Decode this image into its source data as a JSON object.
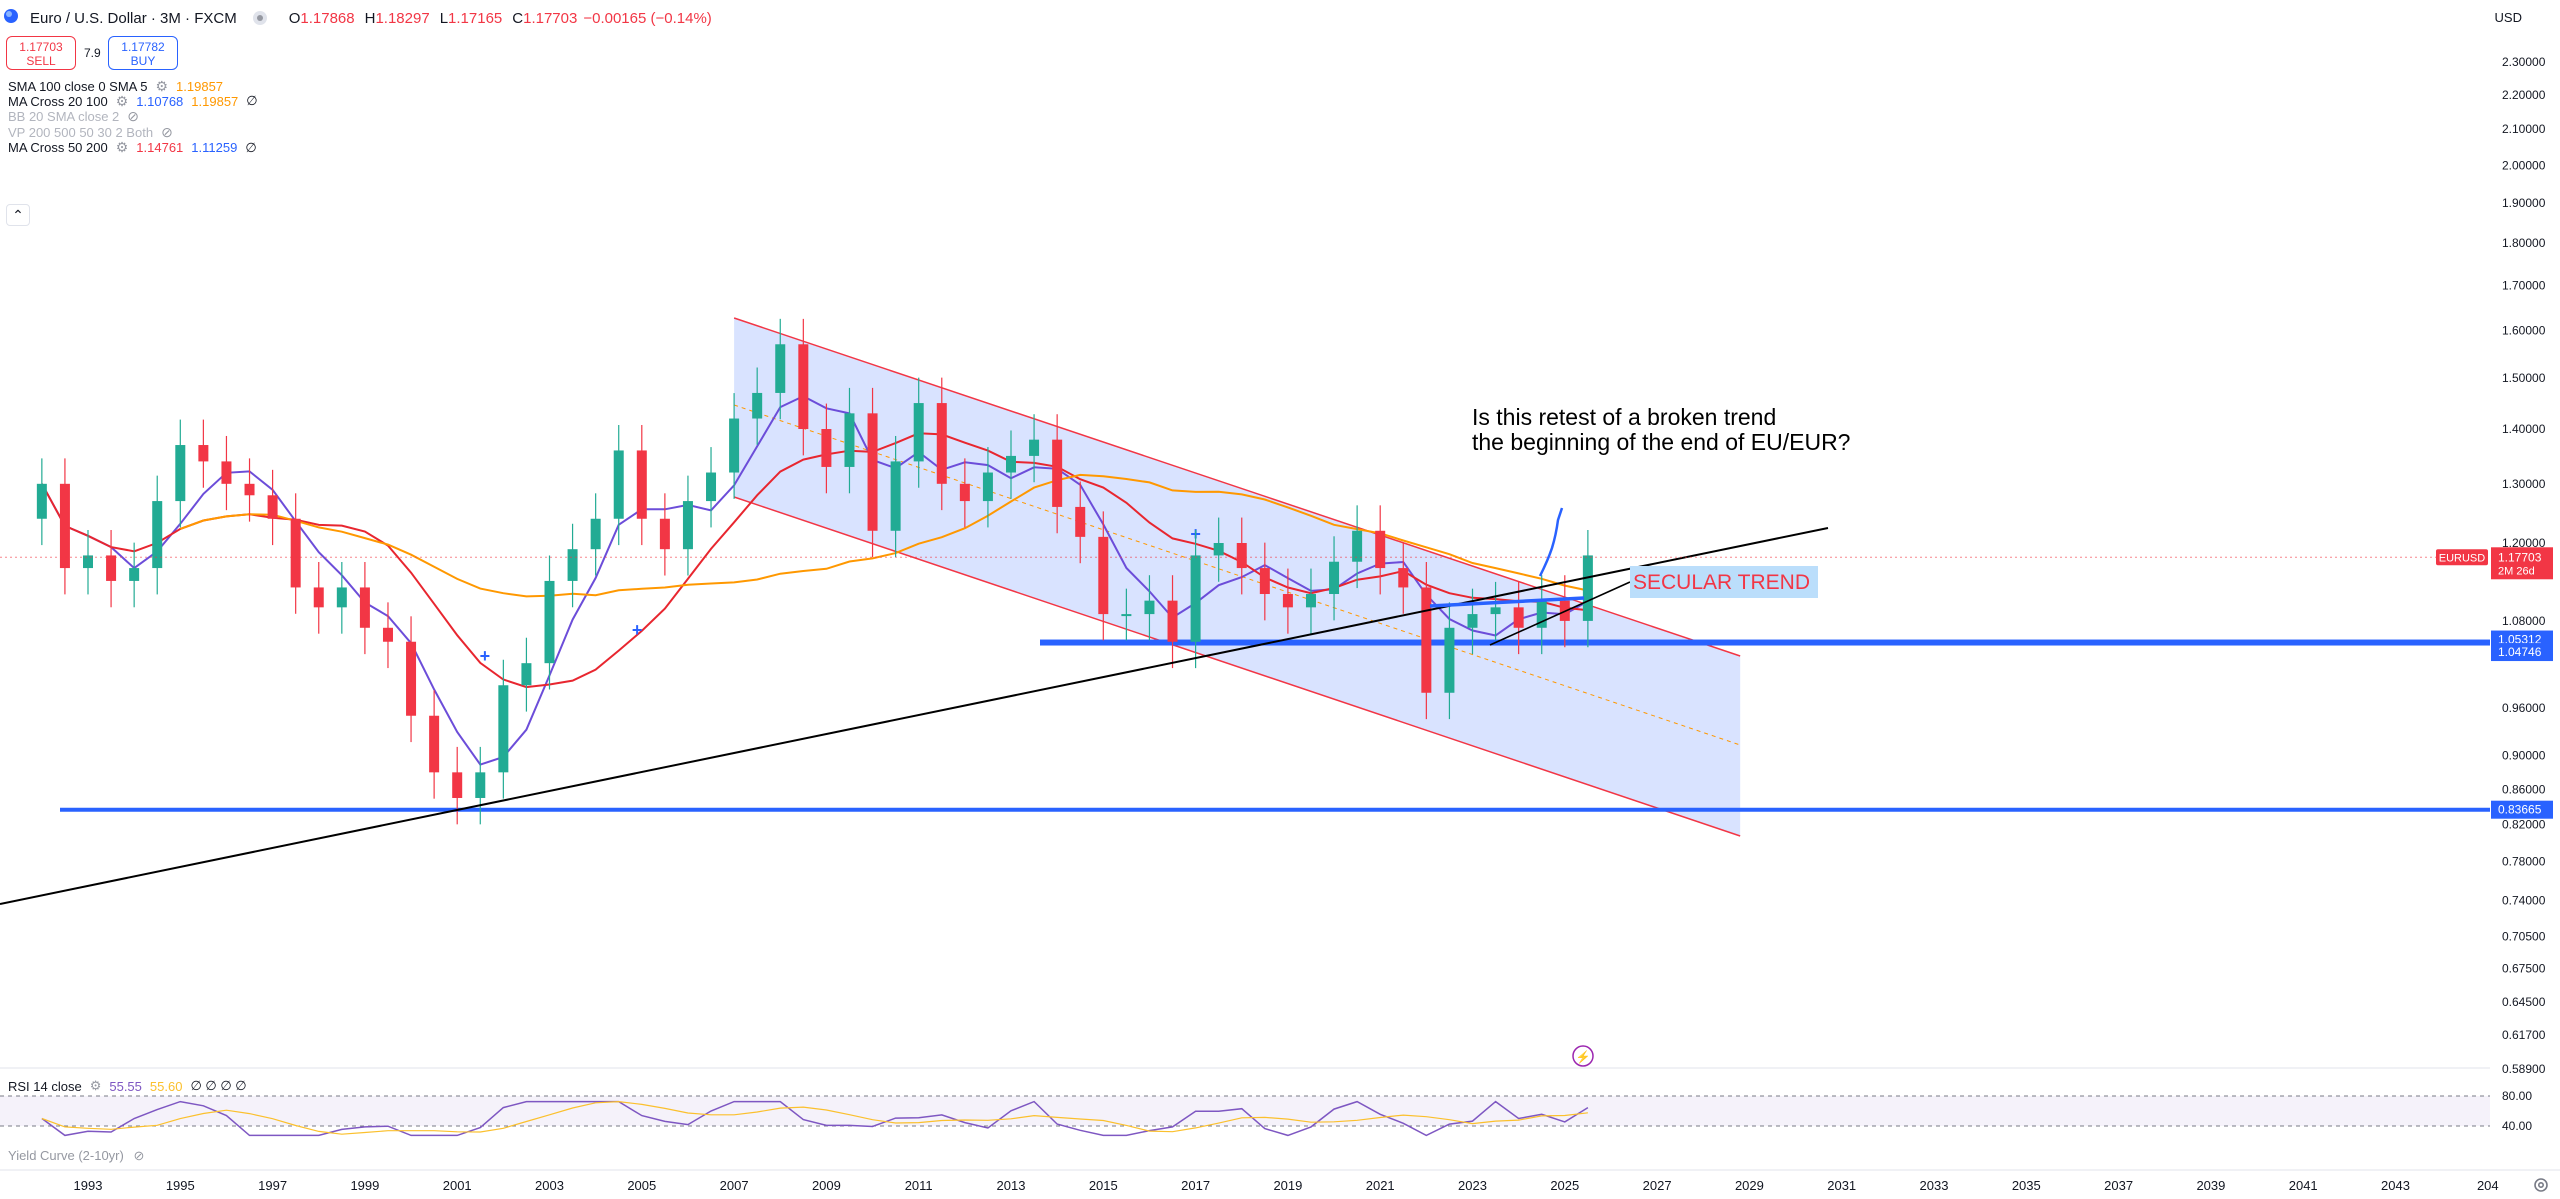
{
  "header": {
    "symbol": "Euro / U.S. Dollar · 3M · FXCM",
    "open_label": "O",
    "open": "1.17868",
    "high_label": "H",
    "high": "1.18297",
    "low_label": "L",
    "low": "1.17165",
    "close_label": "C",
    "close": "1.17703",
    "change": "−0.00165 (−0.14%)",
    "currency": "USD"
  },
  "trade": {
    "sell_price": "1.17703",
    "sell_label": "SELL",
    "spread": "7.9",
    "buy_price": "1.17782",
    "buy_label": "BUY"
  },
  "indicators": [
    {
      "name": "SMA 100 close 0 SMA 5",
      "values": [
        "1.19857"
      ],
      "colors": [
        "#ff9800"
      ],
      "faded": false,
      "suffix": "",
      "icon": "settings-icon"
    },
    {
      "name": "MA Cross 20 100",
      "values": [
        "1.10768",
        "1.19857"
      ],
      "colors": [
        "#2962ff",
        "#ff9800"
      ],
      "faded": false,
      "suffix": "∅",
      "icon": "settings-icon"
    },
    {
      "name": "BB 20 SMA close 2",
      "values": [],
      "colors": [],
      "faded": true,
      "suffix": "",
      "icon": "eye-off-icon"
    },
    {
      "name": "VP 200 500 50 30 2 Both",
      "values": [],
      "colors": [],
      "faded": true,
      "suffix": "",
      "icon": "eye-off-icon"
    },
    {
      "name": "MA Cross 50 200",
      "values": [
        "1.14761",
        "1.11259"
      ],
      "colors": [
        "#f23645",
        "#2962ff"
      ],
      "faded": false,
      "suffix": "∅",
      "icon": "settings-icon"
    }
  ],
  "rsi_panel": {
    "name": "RSI 14 close",
    "value1": "55.55",
    "value2": "55.60",
    "nulls": "∅ ∅ ∅ ∅",
    "levels": [
      "80.00",
      "40.00"
    ],
    "yield_curve": "Yield Curve (2-10yr)"
  },
  "annotations": {
    "question_line1": "Is this retest of a broken trend",
    "question_line2": "the beginning of the end of EU/EUR?",
    "secular_trend": "SECULAR TREND"
  },
  "price_tags": {
    "symbol": "EURUSD",
    "last": "1.17703",
    "countdown": "2M 26d",
    "level_high": "1.05312",
    "level_low": "1.04746",
    "level_support": "0.83665"
  },
  "colors": {
    "up": "#22ab94",
    "down": "#f23645",
    "sma20": "#6c4dd9",
    "sma50": "#e8262f",
    "sma100": "#ff9800",
    "channel": "#f23645",
    "channel_fill": "#cfdcff",
    "hline": "#2962ff",
    "trend": "#000000"
  },
  "chart_data": {
    "type": "candlestick",
    "period": "3M",
    "y_scale": "log",
    "ylim": [
      0.57,
      2.4
    ],
    "y_ticks": [
      "2.30000",
      "2.20000",
      "2.10000",
      "2.00000",
      "1.90000",
      "1.80000",
      "1.70000",
      "1.60000",
      "1.50000",
      "1.40000",
      "1.30000",
      "1.20000",
      "1.08000",
      "0.96000",
      "0.90000",
      "0.86000",
      "0.82000",
      "0.78000",
      "0.74000",
      "0.70500",
      "0.67500",
      "0.64500",
      "0.61700",
      "0.58900"
    ],
    "x_ticks": [
      "1993",
      "1995",
      "1997",
      "1999",
      "2001",
      "2003",
      "2005",
      "2007",
      "2009",
      "2011",
      "2013",
      "2015",
      "2017",
      "2019",
      "2021",
      "2023",
      "2025",
      "2027",
      "2029",
      "2031",
      "2033",
      "2035",
      "2037",
      "2039",
      "2041",
      "2043",
      "204"
    ],
    "closes": [
      {
        "t": 1992.0,
        "c": 1.3
      },
      {
        "t": 1992.5,
        "c": 1.16
      },
      {
        "t": 1993.0,
        "c": 1.18
      },
      {
        "t": 1993.5,
        "c": 1.14
      },
      {
        "t": 1994.0,
        "c": 1.16
      },
      {
        "t": 1994.5,
        "c": 1.27
      },
      {
        "t": 1995.0,
        "c": 1.37
      },
      {
        "t": 1995.5,
        "c": 1.34
      },
      {
        "t": 1996.0,
        "c": 1.3
      },
      {
        "t": 1996.5,
        "c": 1.28
      },
      {
        "t": 1997.0,
        "c": 1.24
      },
      {
        "t": 1997.5,
        "c": 1.13
      },
      {
        "t": 1998.0,
        "c": 1.1
      },
      {
        "t": 1998.5,
        "c": 1.13
      },
      {
        "t": 1999.0,
        "c": 1.07
      },
      {
        "t": 1999.5,
        "c": 1.05
      },
      {
        "t": 2000.0,
        "c": 0.95
      },
      {
        "t": 2000.5,
        "c": 0.88
      },
      {
        "t": 2001.0,
        "c": 0.85
      },
      {
        "t": 2001.5,
        "c": 0.88
      },
      {
        "t": 2002.0,
        "c": 0.99
      },
      {
        "t": 2002.5,
        "c": 1.02
      },
      {
        "t": 2003.0,
        "c": 1.14
      },
      {
        "t": 2003.5,
        "c": 1.19
      },
      {
        "t": 2004.0,
        "c": 1.24
      },
      {
        "t": 2004.5,
        "c": 1.36
      },
      {
        "t": 2005.0,
        "c": 1.24
      },
      {
        "t": 2005.5,
        "c": 1.19
      },
      {
        "t": 2006.0,
        "c": 1.27
      },
      {
        "t": 2006.5,
        "c": 1.32
      },
      {
        "t": 2007.0,
        "c": 1.42
      },
      {
        "t": 2007.5,
        "c": 1.47
      },
      {
        "t": 2008.0,
        "c": 1.57
      },
      {
        "t": 2008.5,
        "c": 1.4
      },
      {
        "t": 2009.0,
        "c": 1.33
      },
      {
        "t": 2009.5,
        "c": 1.43
      },
      {
        "t": 2010.0,
        "c": 1.22
      },
      {
        "t": 2010.5,
        "c": 1.34
      },
      {
        "t": 2011.0,
        "c": 1.45
      },
      {
        "t": 2011.5,
        "c": 1.3
      },
      {
        "t": 2012.0,
        "c": 1.27
      },
      {
        "t": 2012.5,
        "c": 1.32
      },
      {
        "t": 2013.0,
        "c": 1.35
      },
      {
        "t": 2013.5,
        "c": 1.38
      },
      {
        "t": 2014.0,
        "c": 1.26
      },
      {
        "t": 2014.5,
        "c": 1.21
      },
      {
        "t": 2015.0,
        "c": 1.09
      },
      {
        "t": 2015.5,
        "c": 1.09
      },
      {
        "t": 2016.0,
        "c": 1.11
      },
      {
        "t": 2016.5,
        "c": 1.05
      },
      {
        "t": 2017.0,
        "c": 1.18
      },
      {
        "t": 2017.5,
        "c": 1.2
      },
      {
        "t": 2018.0,
        "c": 1.16
      },
      {
        "t": 2018.5,
        "c": 1.12
      },
      {
        "t": 2019.0,
        "c": 1.1
      },
      {
        "t": 2019.5,
        "c": 1.12
      },
      {
        "t": 2020.0,
        "c": 1.17
      },
      {
        "t": 2020.5,
        "c": 1.22
      },
      {
        "t": 2021.0,
        "c": 1.16
      },
      {
        "t": 2021.5,
        "c": 1.13
      },
      {
        "t": 2022.0,
        "c": 0.98
      },
      {
        "t": 2022.5,
        "c": 1.07
      },
      {
        "t": 2023.0,
        "c": 1.09
      },
      {
        "t": 2023.5,
        "c": 1.1
      },
      {
        "t": 2024.0,
        "c": 1.07
      },
      {
        "t": 2024.5,
        "c": 1.11
      },
      {
        "t": 2025.0,
        "c": 1.08
      },
      {
        "t": 2025.5,
        "c": 1.18
      }
    ],
    "rsi_levels": [
      80,
      40
    ]
  }
}
